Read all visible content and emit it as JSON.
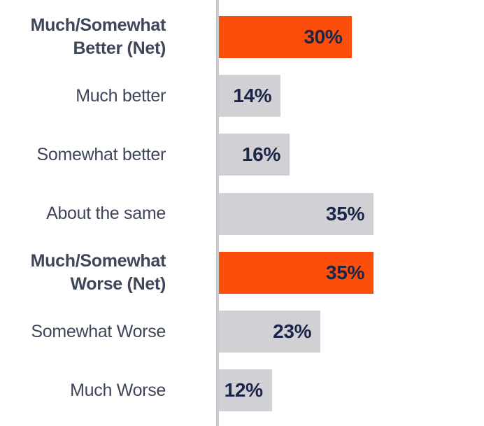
{
  "chart_data": {
    "type": "bar",
    "orientation": "horizontal",
    "title": "",
    "categories": [
      "Much/Somewhat Better (Net)",
      "Much better",
      "Somewhat better",
      "About the same",
      "Much/Somewhat Worse (Net)",
      "Somewhat Worse",
      "Much Worse"
    ],
    "values": [
      30,
      14,
      16,
      35,
      35,
      23,
      12
    ],
    "value_labels": [
      "30%",
      "14%",
      "16%",
      "35%",
      "35%",
      "23%",
      "12%"
    ],
    "unit": "percent",
    "xlim": [
      0,
      60
    ],
    "grid": false,
    "legend": "none",
    "emphasized_categories": [
      "Much/Somewhat Better (Net)",
      "Much/Somewhat Worse (Net)"
    ]
  },
  "rows": [
    {
      "label": "Much/Somewhat\nBetter (Net)",
      "value": 30,
      "value_label": "30%",
      "emphasis": true,
      "bold": true
    },
    {
      "label": "Much better",
      "value": 14,
      "value_label": "14%",
      "emphasis": false,
      "bold": false
    },
    {
      "label": "Somewhat better",
      "value": 16,
      "value_label": "16%",
      "emphasis": false,
      "bold": false
    },
    {
      "label": "About the same",
      "value": 35,
      "value_label": "35%",
      "emphasis": false,
      "bold": false
    },
    {
      "label": "Much/Somewhat\nWorse (Net)",
      "value": 35,
      "value_label": "35%",
      "emphasis": true,
      "bold": true
    },
    {
      "label": "Somewhat Worse",
      "value": 23,
      "value_label": "23%",
      "emphasis": false,
      "bold": false
    },
    {
      "label": "Much Worse",
      "value": 12,
      "value_label": "12%",
      "emphasis": false,
      "bold": false
    }
  ],
  "colors": {
    "bar_default": "#d1d1d5",
    "bar_emphasis": "#fb4e0b",
    "value_text": "#1b2547",
    "label_text": "#3e4659",
    "axis_line": "#c9cacf",
    "background": "#ffffff"
  }
}
